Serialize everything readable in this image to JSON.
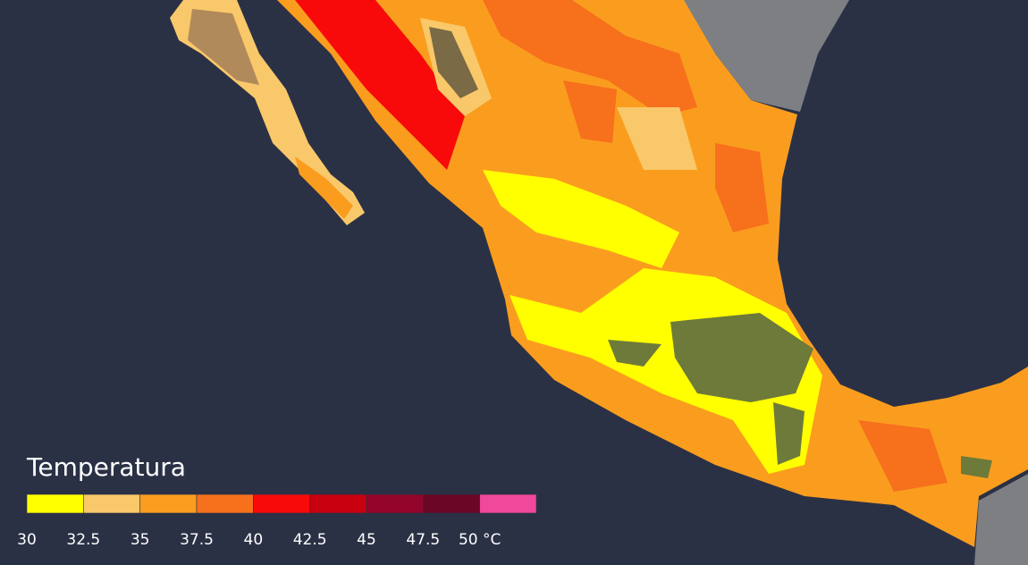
{
  "legend": {
    "title": "Temperatura",
    "colors": [
      "#ffff00",
      "#f9c86a",
      "#fa9d1e",
      "#f7701c",
      "#f80a0a",
      "#c8000f",
      "#93052a",
      "#6a0726",
      "#f0489a"
    ],
    "ticks": [
      30,
      32.5,
      35,
      37.5,
      40,
      42.5,
      45,
      47.5,
      {
        "value": 50,
        "label": "50 °C"
      }
    ]
  }
}
